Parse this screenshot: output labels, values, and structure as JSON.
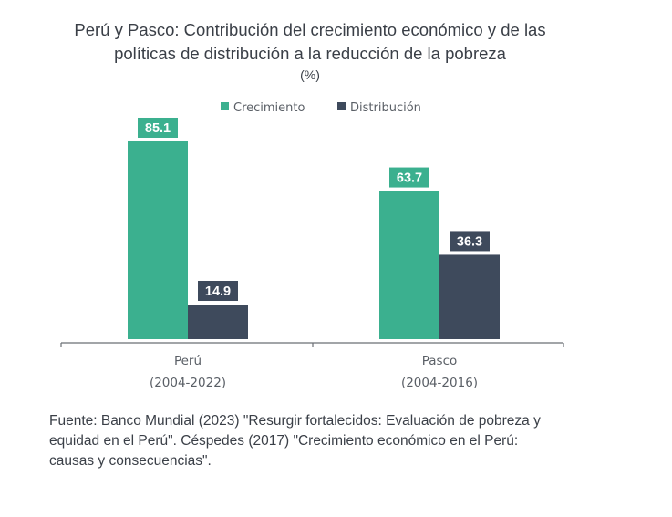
{
  "title_line1": "Perú y Pasco: Contribución del crecimiento económico y de las",
  "title_line2": "políticas de distribución a la reducción de la pobreza",
  "units": "(%)",
  "source_line1": "Fuente: Banco Mundial (2023) \"Resurgir fortalecidos: Evaluación de pobreza y",
  "source_line2": "equidad en el Perú\". Céspedes (2017) \"Crecimiento económico en el Perú:",
  "source_line3": "causas y consecuencias\".",
  "chart_data": {
    "type": "bar",
    "title": "Perú y Pasco: Contribución del crecimiento económico y de las políticas de distribución a la reducción de la pobreza",
    "ylabel": "(%)",
    "xlabel": "",
    "ylim": [
      0,
      100
    ],
    "grid": false,
    "legend_position": "top-center",
    "categories": [
      {
        "name": "Perú",
        "period": "(2004-2022)"
      },
      {
        "name": "Pasco",
        "period": "(2004-2016)"
      }
    ],
    "series": [
      {
        "name": "Crecimiento",
        "color": "#3bb08f",
        "values": [
          85.1,
          63.7
        ],
        "labels": [
          "85.1",
          "63.7"
        ]
      },
      {
        "name": "Distribución",
        "color": "#3e4a5c",
        "values": [
          14.9,
          36.3
        ],
        "labels": [
          "14.9",
          "36.3"
        ]
      }
    ]
  }
}
